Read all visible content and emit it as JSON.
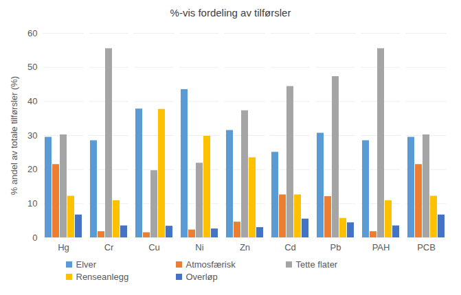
{
  "chart_data": {
    "type": "bar",
    "title": "%-vis fordeling av tilførsler",
    "y_label": "% andel av totale tilførsler (%)",
    "categories": [
      "Hg",
      "Cr",
      "Cu",
      "Ni",
      "Zn",
      "Cd",
      "Pb",
      "PAH",
      "PCB"
    ],
    "series": [
      {
        "name": "Elver",
        "color": "#5B9BD5",
        "values": [
          29.5,
          28.5,
          37.8,
          43.5,
          31.5,
          25.1,
          30.7,
          28.5,
          29.5
        ]
      },
      {
        "name": "Atmosfærisk",
        "color": "#ED7D31",
        "values": [
          21.5,
          1.8,
          1.5,
          2.3,
          4.6,
          12.6,
          12.1,
          1.8,
          21.5
        ]
      },
      {
        "name": "Tette flater",
        "color": "#A5A5A5",
        "values": [
          30.2,
          55.5,
          19.7,
          21.9,
          37.3,
          44.4,
          47.3,
          55.5,
          30.2
        ]
      },
      {
        "name": "Renseanlegg",
        "color": "#FFC000",
        "values": [
          12.2,
          10.9,
          37.7,
          29.8,
          23.5,
          12.6,
          5.7,
          10.9,
          12.2
        ]
      },
      {
        "name": "Overløp",
        "color": "#4472C4",
        "values": [
          6.7,
          3.5,
          3.4,
          2.6,
          3.0,
          5.5,
          4.4,
          3.5,
          6.7
        ]
      }
    ],
    "ylim": [
      0,
      60
    ],
    "yticks": [
      0,
      10,
      20,
      30,
      40,
      50,
      60
    ],
    "grid": true,
    "legend": "bottom"
  }
}
